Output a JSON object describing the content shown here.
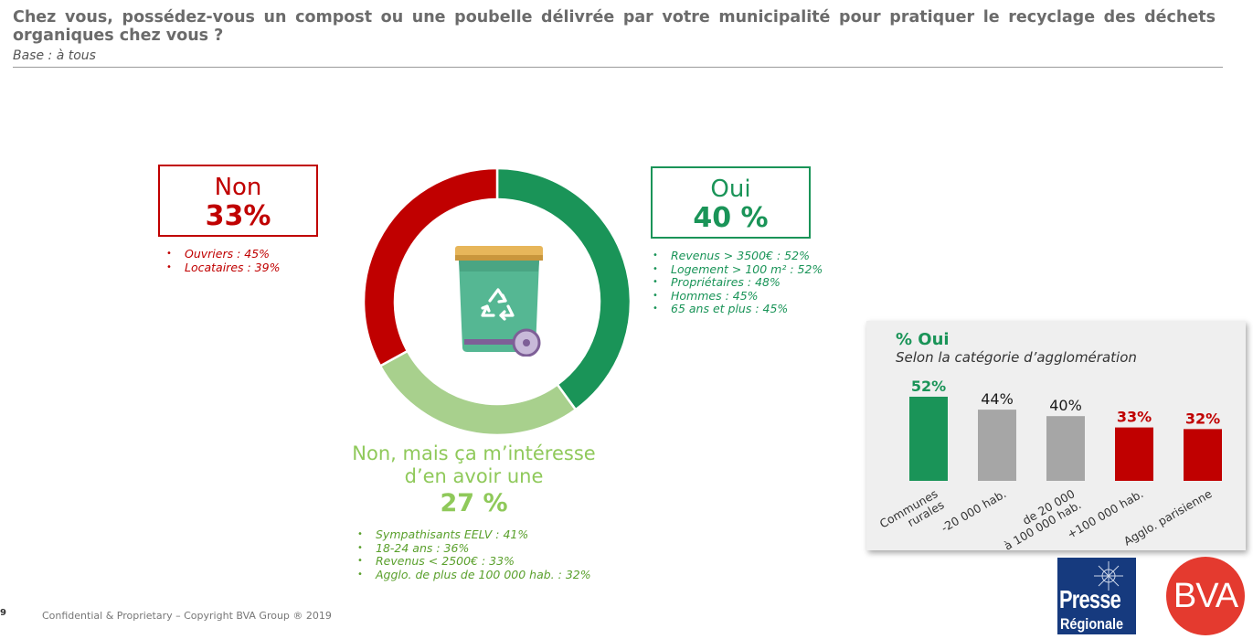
{
  "header": {
    "question": "Chez vous, possédez-vous un compost ou une poubelle délivrée par votre municipalité pour pratiquer le recyclage des déchets organiques chez vous ?",
    "base": "Base : à tous"
  },
  "colors": {
    "oui": "#1a9458",
    "non": "#c00000",
    "interest": "#a8d08d",
    "grey": "#a6a6a6"
  },
  "icons": {
    "center": "recycling-bin-icon"
  },
  "chart_data": [
    {
      "type": "pie",
      "slices": [
        {
          "name": "Oui",
          "value": 40,
          "label": "40 %",
          "color": "#1a9458",
          "details": [
            "Revenus > 3500€ : 52%",
            "Logement > 100 m² : 52%",
            "Propriétaires : 48%",
            "Hommes : 45%",
            "65 ans et plus : 45%"
          ]
        },
        {
          "name": "Non, mais ça m’intéresse d’en avoir une",
          "value": 27,
          "label": "27 %",
          "color": "#a8d08d",
          "label_lines": [
            "Non, mais ça m’intéresse",
            "d’en avoir une"
          ],
          "details": [
            "Sympathisants EELV : 41%",
            "18-24 ans : 36%",
            "Revenus < 2500€ : 33%",
            "Agglo. de plus de 100 000 hab. : 32%"
          ]
        },
        {
          "name": "Non",
          "value": 33,
          "label": "33%",
          "color": "#c00000",
          "details": [
            "Ouvriers : 45%",
            "Locataires : 39%"
          ]
        }
      ]
    },
    {
      "type": "bar",
      "title": "% Oui",
      "subtitle": "Selon la catégorie d’agglomération",
      "categories": [
        "Communes rurales",
        "-20 000 hab.",
        "de 20 000 à 100 000 hab.",
        "+100 000 hab.",
        "Agglo. parisienne"
      ],
      "category_lines": [
        [
          "Communes",
          "rurales"
        ],
        [
          "-20 000 hab."
        ],
        [
          "de 20 000",
          "à 100 000 hab."
        ],
        [
          "+100 000 hab."
        ],
        [
          "Agglo. parisienne"
        ]
      ],
      "values": [
        52,
        44,
        40,
        33,
        32
      ],
      "labels": [
        "52%",
        "44%",
        "40%",
        "33%",
        "32%"
      ],
      "colors": [
        "#1a9458",
        "#a6a6a6",
        "#a6a6a6",
        "#c00000",
        "#c00000"
      ],
      "label_colors": [
        "#1a9458",
        "#1a1a1a",
        "#1a1a1a",
        "#c00000",
        "#c00000"
      ]
    }
  ],
  "footer": {
    "page": "9",
    "copyright": "Confidential & Proprietary – Copyright BVA Group ® 2019"
  },
  "logos": {
    "presse_line1": "Presse",
    "presse_line2": "Régionale",
    "bva": "BVA"
  }
}
